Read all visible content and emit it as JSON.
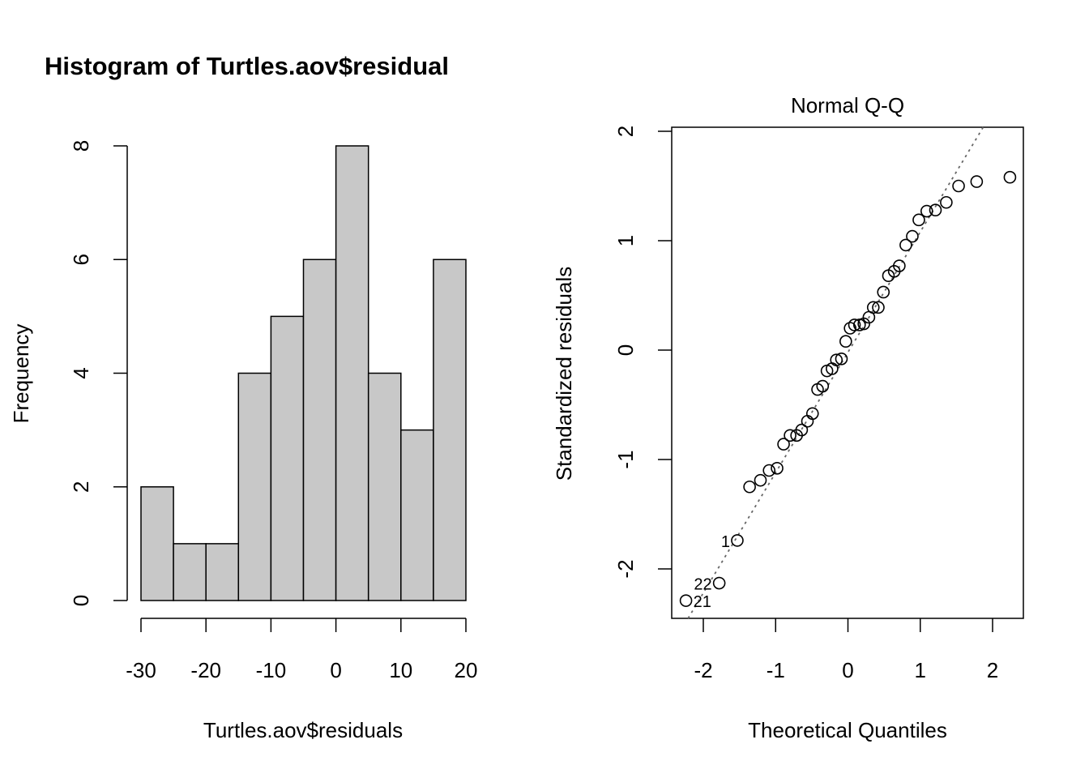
{
  "chart_data": [
    {
      "type": "bar",
      "title": "Histogram of Turtles.aov$residual",
      "xlabel": "Turtles.aov$residuals",
      "ylabel": "Frequency",
      "bin_edges": [
        -30,
        -25,
        -20,
        -15,
        -10,
        -5,
        0,
        5,
        10,
        15,
        20
      ],
      "values": [
        2,
        1,
        1,
        4,
        5,
        6,
        8,
        4,
        3,
        6
      ],
      "xlim": [
        -30,
        20
      ],
      "ylim": [
        0,
        8
      ],
      "xticks": [
        -30,
        -20,
        -10,
        0,
        10,
        20
      ],
      "yticks": [
        0,
        2,
        4,
        6,
        8
      ],
      "xtick_labels": [
        "-30",
        "-20",
        "-10",
        "0",
        "10",
        "20"
      ],
      "ytick_labels": [
        "0",
        "2",
        "4",
        "6",
        "8"
      ],
      "bar_color": "#c8c8c8"
    },
    {
      "type": "scatter",
      "title": "Normal Q-Q",
      "xlabel": "Theoretical Quantiles",
      "ylabel": "Standardized residuals",
      "xlim": [
        -2.4,
        2.4
      ],
      "ylim": [
        -2.45,
        2.05
      ],
      "xticks": [
        -2,
        -1,
        0,
        1,
        2
      ],
      "yticks": [
        -2,
        -1,
        0,
        1,
        2
      ],
      "xtick_labels": [
        "-2",
        "-1",
        "0",
        "1",
        "2"
      ],
      "ytick_labels": [
        "-2",
        "-1",
        "0",
        "1",
        "2"
      ],
      "x": [
        -2.24,
        -1.78,
        -1.53,
        -1.36,
        -1.21,
        -1.09,
        -0.98,
        -0.89,
        -0.8,
        -0.71,
        -0.64,
        -0.56,
        -0.49,
        -0.42,
        -0.35,
        -0.29,
        -0.22,
        -0.16,
        -0.09,
        -0.03,
        0.03,
        0.09,
        0.16,
        0.22,
        0.29,
        0.35,
        0.42,
        0.49,
        0.56,
        0.64,
        0.71,
        0.8,
        0.89,
        0.98,
        1.09,
        1.21,
        1.36,
        1.53,
        1.78,
        2.24
      ],
      "y": [
        -2.29,
        -2.13,
        -1.74,
        -1.25,
        -1.19,
        -1.1,
        -1.08,
        -0.86,
        -0.78,
        -0.78,
        -0.73,
        -0.65,
        -0.58,
        -0.36,
        -0.33,
        -0.19,
        -0.17,
        -0.09,
        -0.08,
        0.08,
        0.2,
        0.23,
        0.23,
        0.24,
        0.3,
        0.39,
        0.39,
        0.53,
        0.68,
        0.72,
        0.77,
        0.96,
        1.04,
        1.19,
        1.27,
        1.28,
        1.35,
        1.5,
        1.54,
        1.58
      ],
      "point_labels": [
        {
          "index": 0,
          "text": "21"
        },
        {
          "index": 1,
          "text": "22"
        },
        {
          "index": 2,
          "text": "1"
        }
      ],
      "reference_line": {
        "slope": 1.1,
        "intercept": -0.02,
        "style": "dotted",
        "color": "#666666"
      }
    }
  ]
}
